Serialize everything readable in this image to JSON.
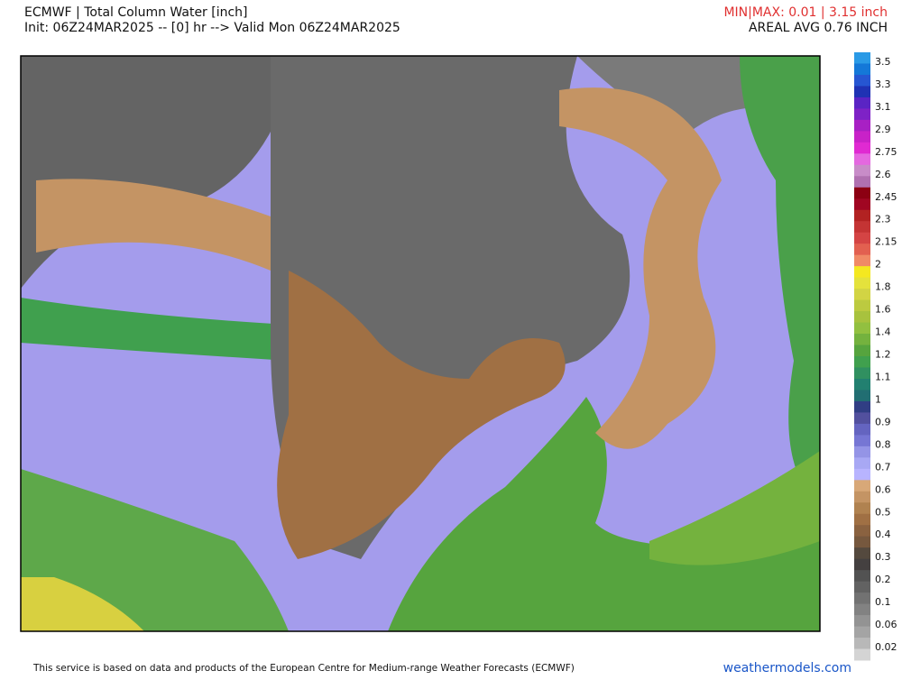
{
  "header": {
    "title": "ECMWF | Total Column Water [inch]",
    "init": "Init: 06Z24MAR2025 -- [0] hr --> Valid Mon 06Z24MAR2025",
    "minmax": "MIN|MAX: 0.01 | 3.15 inch",
    "areal_avg": "AREAL AVG 0.76 INCH"
  },
  "colorbar": {
    "labels": [
      3.5,
      3.3,
      3.1,
      2.9,
      2.75,
      2.6,
      2.45,
      2.3,
      2.15,
      2,
      1.8,
      1.6,
      1.4,
      1.2,
      1.1,
      1,
      0.9,
      0.8,
      0.7,
      0.6,
      0.5,
      0.4,
      0.3,
      0.2,
      0.1,
      0.06,
      0.02
    ],
    "colors": [
      "#2a9ae6",
      "#1478d8",
      "#2656d2",
      "#1f32b4",
      "#5a24c4",
      "#7e22c6",
      "#a820c4",
      "#c822c8",
      "#e02ad2",
      "#e468e0",
      "#c88cc8",
      "#b070b0",
      "#8c0012",
      "#a00622",
      "#b22222",
      "#c43434",
      "#d44444",
      "#e26050",
      "#f08a66",
      "#f4e820",
      "#e4e23c",
      "#d2d444",
      "#bcca40",
      "#a8c23e",
      "#92c040",
      "#74b23e",
      "#56a43e",
      "#40a04e",
      "#309060",
      "#228070",
      "#216e72",
      "#303e84",
      "#52509e",
      "#6464c0",
      "#7676d4",
      "#9494e6",
      "#a8a8f4",
      "#b8b4ff",
      "#d8a878",
      "#c49464",
      "#b08250",
      "#a07044",
      "#8a6240",
      "#76583e",
      "#54493e",
      "#444040",
      "#525252",
      "#626262",
      "#727272",
      "#828282",
      "#939393",
      "#a4a4a4",
      "#b8b8b8",
      "#d4d4d4"
    ]
  },
  "footer": {
    "notice": "This service is based on data and products of the European Centre for Medium-range Weather Forecasts (ECMWF)",
    "site": "weathermodels.com"
  }
}
